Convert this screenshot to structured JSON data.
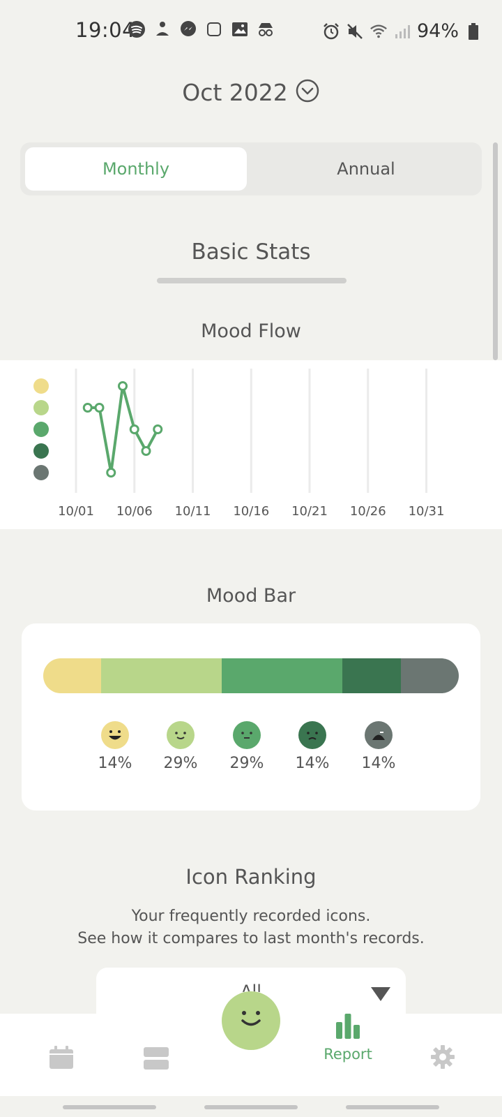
{
  "status_bar": {
    "time": "19:04",
    "battery_pct": "94%",
    "left_icons": [
      "spotify-icon",
      "meditation-app-icon",
      "messenger-icon",
      "square-app-icon",
      "gallery-icon",
      "incognito-icon"
    ],
    "right_icons": [
      "alarm-icon",
      "mute-icon",
      "wifi-icon",
      "signal-icon",
      "battery-icon"
    ]
  },
  "header": {
    "month": "Oct 2022"
  },
  "period_tabs": [
    {
      "label": "Monthly",
      "active": true
    },
    {
      "label": "Annual",
      "active": false
    }
  ],
  "sections": {
    "basic_stats": "Basic Stats",
    "mood_flow": "Mood Flow",
    "mood_bar": "Mood Bar",
    "icon_ranking": "Icon Ranking"
  },
  "colors": {
    "mood_1": "#efdc8a",
    "mood_2": "#b8d68a",
    "mood_3": "#5aa86c",
    "mood_4": "#3a7550",
    "mood_5": "#6b7672",
    "accent": "#5aa86c"
  },
  "chart_data": {
    "type": "line",
    "x_tick_labels": [
      "10/01",
      "10/06",
      "10/11",
      "10/16",
      "10/21",
      "10/26",
      "10/31"
    ],
    "x_range": [
      1,
      31
    ],
    "y_levels": 5,
    "points": [
      {
        "day": 2,
        "mood": 4
      },
      {
        "day": 3,
        "mood": 4
      },
      {
        "day": 4,
        "mood": 1
      },
      {
        "day": 5,
        "mood": 5
      },
      {
        "day": 6,
        "mood": 3
      },
      {
        "day": 7,
        "mood": 2
      },
      {
        "day": 8,
        "mood": 3
      }
    ]
  },
  "mood_bar": {
    "segments": [
      {
        "pct": 14,
        "label": "14%"
      },
      {
        "pct": 29,
        "label": "29%"
      },
      {
        "pct": 29,
        "label": "29%"
      },
      {
        "pct": 14,
        "label": "14%"
      },
      {
        "pct": 14,
        "label": "14%"
      }
    ]
  },
  "icon_ranking": {
    "description_line1": "Your frequently recorded icons.",
    "description_line2": "See how it compares to last month's records.",
    "filter_value": "All"
  },
  "bottom_nav": {
    "items": [
      {
        "icon": "calendar-icon",
        "label": ""
      },
      {
        "icon": "list-icon",
        "label": ""
      },
      {
        "icon": "report-icon",
        "label": "Report",
        "active": true
      },
      {
        "icon": "settings-icon",
        "label": ""
      }
    ],
    "fab_icon": "smiley-add-icon"
  }
}
